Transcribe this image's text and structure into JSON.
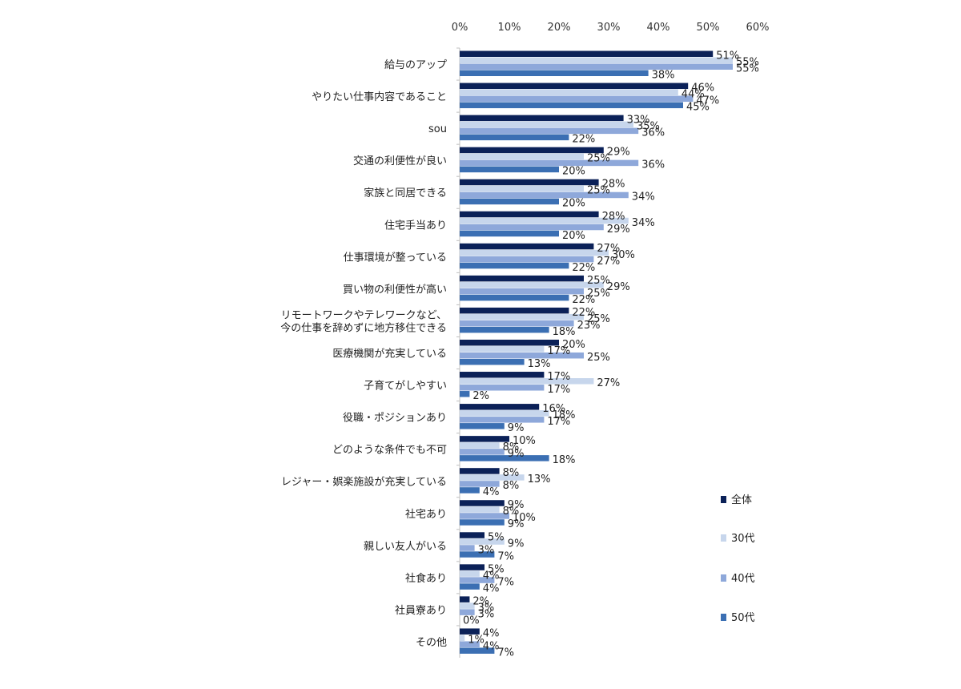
{
  "chart_data": {
    "type": "bar",
    "orientation": "horizontal",
    "title": "",
    "xlabel": "",
    "ylabel": "",
    "xlim": [
      0,
      60
    ],
    "x_ticks": [
      "0%",
      "10%",
      "20%",
      "30%",
      "40%",
      "50%",
      "60%"
    ],
    "value_suffix": "%",
    "grid": false,
    "legend_position": "right",
    "categories": [
      "給与のアップ",
      "やりたい仕事内容であること",
      "sou",
      "交通の利便性が良い",
      "家族と同居できる",
      "住宅手当あり",
      "仕事環境が整っている",
      "買い物の利便性が高い",
      "リモートワークやテレワークなど、\n今の仕事を辞めずに地方移住できる",
      "医療機関が充実している",
      "子育てがしやすい",
      "役職・ポジションあり",
      "どのような条件でも不可",
      "レジャー・娯楽施設が充実している",
      "社宅あり",
      "親しい友人がいる",
      "社食あり",
      "社員寮あり",
      "その他"
    ],
    "series": [
      {
        "name": "全体",
        "color": "#0b2158",
        "values": [
          51,
          46,
          33,
          29,
          28,
          28,
          27,
          25,
          22,
          20,
          17,
          16,
          10,
          8,
          9,
          5,
          5,
          2,
          4
        ]
      },
      {
        "name": "30代",
        "color": "#c7d6ec",
        "values": [
          55,
          44,
          35,
          25,
          25,
          34,
          30,
          29,
          25,
          17,
          27,
          18,
          8,
          13,
          8,
          9,
          4,
          3,
          1
        ]
      },
      {
        "name": "40代",
        "color": "#8ea8da",
        "values": [
          55,
          47,
          36,
          36,
          34,
          29,
          27,
          25,
          23,
          25,
          17,
          17,
          9,
          8,
          10,
          3,
          7,
          3,
          4
        ]
      },
      {
        "name": "50代",
        "color": "#3b6fb3",
        "values": [
          38,
          45,
          22,
          20,
          20,
          20,
          22,
          22,
          18,
          13,
          2,
          9,
          18,
          4,
          9,
          7,
          4,
          0,
          7
        ]
      }
    ]
  }
}
